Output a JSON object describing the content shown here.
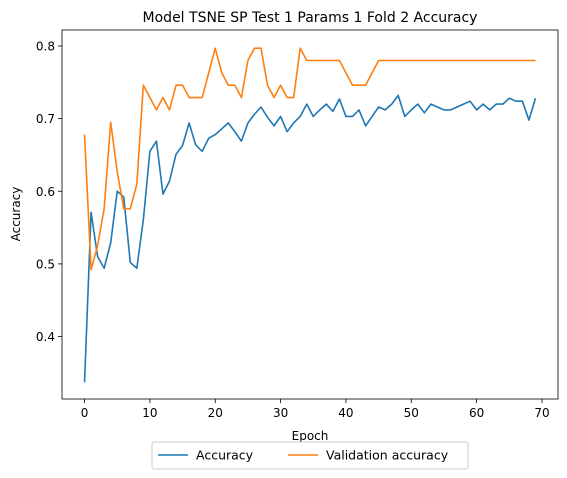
{
  "chart_data": {
    "type": "line",
    "title": "Model TSNE SP Test 1 Params 1 Fold 2 Accuracy",
    "xlabel": "Epoch",
    "ylabel": "Accuracy",
    "xlim": [
      -3.45,
      72.45
    ],
    "ylim": [
      0.314,
      0.822
    ],
    "xticks": [
      0,
      10,
      20,
      30,
      40,
      50,
      60,
      70
    ],
    "yticks": [
      0.4,
      0.5,
      0.6,
      0.7,
      0.8
    ],
    "grid": false,
    "legend": "bottom-center",
    "x": [
      0,
      1,
      2,
      3,
      4,
      5,
      6,
      7,
      8,
      9,
      10,
      11,
      12,
      13,
      14,
      15,
      16,
      17,
      18,
      19,
      20,
      21,
      22,
      23,
      24,
      25,
      26,
      27,
      28,
      29,
      30,
      31,
      32,
      33,
      34,
      35,
      36,
      37,
      38,
      39,
      40,
      41,
      42,
      43,
      44,
      45,
      46,
      47,
      48,
      49,
      50,
      51,
      52,
      53,
      54,
      55,
      56,
      57,
      58,
      59,
      60,
      61,
      62,
      63,
      64,
      65,
      66,
      67,
      68,
      69
    ],
    "series": [
      {
        "name": "Accuracy",
        "color": "#1f77b4",
        "values": [
          0.337,
          0.571,
          0.51,
          0.494,
          0.529,
          0.6,
          0.592,
          0.502,
          0.494,
          0.561,
          0.655,
          0.669,
          0.596,
          0.614,
          0.651,
          0.663,
          0.694,
          0.664,
          0.655,
          0.673,
          0.678,
          0.686,
          0.694,
          0.682,
          0.669,
          0.694,
          0.706,
          0.716,
          0.702,
          0.69,
          0.703,
          0.682,
          0.694,
          0.703,
          0.72,
          0.703,
          0.712,
          0.72,
          0.71,
          0.727,
          0.703,
          0.703,
          0.712,
          0.69,
          0.703,
          0.716,
          0.712,
          0.72,
          0.732,
          0.703,
          0.712,
          0.72,
          0.708,
          0.72,
          0.716,
          0.712,
          0.712,
          0.716,
          0.72,
          0.724,
          0.712,
          0.72,
          0.712,
          0.72,
          0.72,
          0.728,
          0.724,
          0.724,
          0.698,
          0.728
        ]
      },
      {
        "name": "Validation accuracy",
        "color": "#ff7f0e",
        "values": [
          0.678,
          0.492,
          0.525,
          0.576,
          0.695,
          0.627,
          0.576,
          0.576,
          0.61,
          0.746,
          0.729,
          0.712,
          0.729,
          0.712,
          0.746,
          0.746,
          0.729,
          0.729,
          0.729,
          0.763,
          0.797,
          0.763,
          0.746,
          0.746,
          0.729,
          0.78,
          0.797,
          0.797,
          0.746,
          0.729,
          0.746,
          0.729,
          0.729,
          0.797,
          0.78,
          0.78,
          0.78,
          0.78,
          0.78,
          0.78,
          0.763,
          0.746,
          0.746,
          0.746,
          0.763,
          0.78,
          0.78,
          0.78,
          0.78,
          0.78,
          0.78,
          0.78,
          0.78,
          0.78,
          0.78,
          0.78,
          0.78,
          0.78,
          0.78,
          0.78,
          0.78,
          0.78,
          0.78,
          0.78,
          0.78,
          0.78,
          0.78,
          0.78,
          0.78,
          0.78
        ]
      }
    ]
  }
}
